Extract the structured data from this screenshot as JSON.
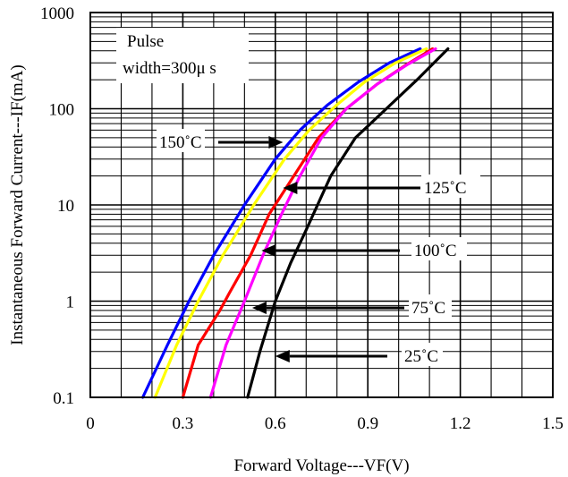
{
  "chart_data": {
    "type": "line",
    "xlabel": "Forward Voltage---VF(V)",
    "ylabel": "Instantaneous Forward Current---IF(mA)",
    "xlim": [
      0,
      1.5
    ],
    "ylim": [
      0.1,
      1000
    ],
    "yscale": "log",
    "grid": true,
    "x_ticks": [
      "0",
      "0.3",
      "0.6",
      "0.9",
      "1.2",
      "1.5"
    ],
    "y_ticks": [
      "0.1",
      "1",
      "10",
      "100",
      "1000"
    ],
    "annotation": {
      "line1": "Pulse",
      "line2": "width=300μ s"
    },
    "series": [
      {
        "name": "150˚C",
        "color": "#0000ff",
        "x": [
          0.17,
          0.25,
          0.32,
          0.4,
          0.5,
          0.6,
          0.68,
          0.77,
          0.87,
          0.97,
          1.07
        ],
        "y": [
          0.1,
          0.35,
          1.0,
          3.0,
          10,
          30,
          60,
          110,
          190,
          300,
          420
        ]
      },
      {
        "name": "125˚C",
        "color": "#ffff00",
        "x": [
          0.21,
          0.28,
          0.35,
          0.43,
          0.53,
          0.63,
          0.71,
          0.8,
          0.89,
          0.99,
          1.09
        ],
        "y": [
          0.1,
          0.35,
          1.0,
          3.0,
          10,
          30,
          60,
          110,
          190,
          300,
          420
        ]
      },
      {
        "name": "100˚C",
        "color": "#ff0000",
        "x": [
          0.3,
          0.35,
          0.42,
          0.45,
          0.52,
          0.58,
          0.66,
          0.74,
          0.83,
          0.93,
          1.02,
          1.11
        ],
        "y": [
          0.1,
          0.35,
          0.8,
          1.2,
          3.0,
          8.0,
          20,
          50,
          100,
          180,
          280,
          420
        ]
      },
      {
        "name": "75˚C",
        "color": "#ff00ff",
        "x": [
          0.39,
          0.44,
          0.5,
          0.56,
          0.62,
          0.68,
          0.75,
          0.83,
          0.93,
          1.03,
          1.12
        ],
        "y": [
          0.1,
          0.35,
          1.0,
          3.0,
          8.0,
          20,
          50,
          100,
          180,
          290,
          420
        ]
      },
      {
        "name": "25˚C",
        "color": "#000000",
        "x": [
          0.51,
          0.55,
          0.6,
          0.65,
          0.7,
          0.78,
          0.86,
          0.96,
          1.06,
          1.16
        ],
        "y": [
          0.1,
          0.3,
          1.0,
          2.5,
          5.5,
          20,
          50,
          100,
          200,
          420
        ]
      }
    ],
    "callouts": [
      {
        "label": "150˚C",
        "x": 0.625,
        "y": 40
      },
      {
        "label": "125˚C",
        "x": 0.625,
        "y": 13.5
      },
      {
        "label": "100˚C",
        "x": 0.555,
        "y": 3.0
      },
      {
        "label": "75˚C",
        "x": 0.525,
        "y": 0.8
      },
      {
        "label": "25˚C",
        "x": 0.6,
        "y": 0.25
      }
    ]
  }
}
